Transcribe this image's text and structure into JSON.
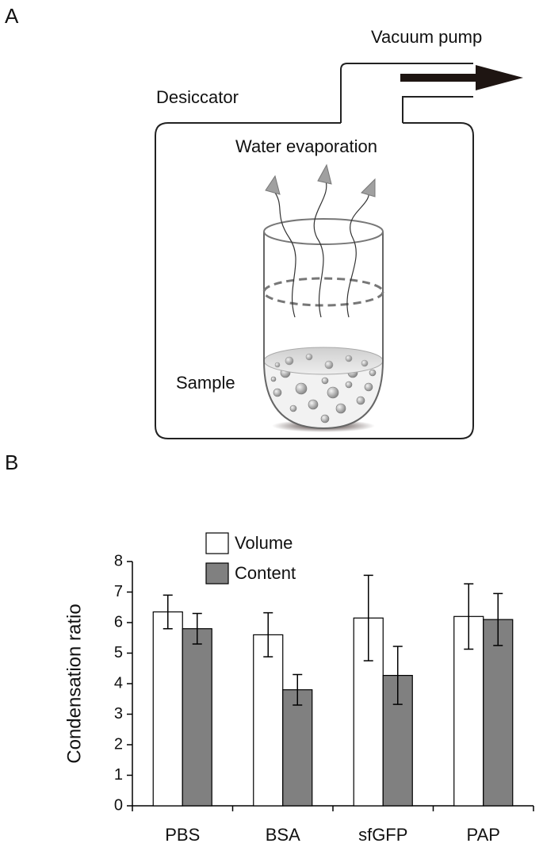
{
  "panel_labels": [
    "A",
    "B"
  ],
  "diagram": {
    "pump_label": "Vacuum pump",
    "desiccator_label": "Desiccator",
    "evaporation_label": "Water evaporation",
    "sample_label": "Sample"
  },
  "chart_data": {
    "type": "bar",
    "y_label": "Condensation ratio",
    "categories": [
      "PBS",
      "BSA",
      "sfGFP",
      "PAP"
    ],
    "series": [
      {
        "name": "Volume",
        "color": "#ffffff",
        "values": [
          6.35,
          5.6,
          6.15,
          6.2
        ],
        "errors": [
          0.55,
          0.72,
          1.4,
          1.07
        ]
      },
      {
        "name": "Content",
        "color": "#808080",
        "values": [
          5.8,
          3.8,
          4.27,
          6.1
        ],
        "errors": [
          0.5,
          0.5,
          0.95,
          0.85
        ]
      }
    ],
    "ylim": [
      0,
      8
    ],
    "yticks": [
      0,
      1,
      2,
      3,
      4,
      5,
      6,
      7,
      8
    ],
    "legend": "top-left"
  }
}
